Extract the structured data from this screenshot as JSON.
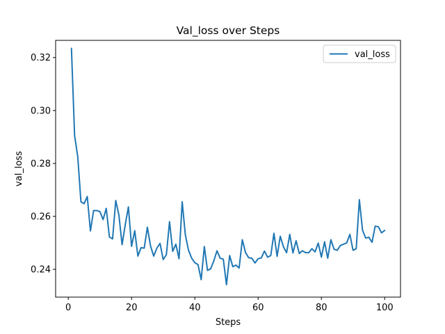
{
  "chart_data": {
    "type": "line",
    "title": "Val_loss over Steps",
    "xlabel": "Steps",
    "ylabel": "val_loss",
    "xlim": [
      -4.0,
      105.0
    ],
    "ylim": [
      0.2295,
      0.3265
    ],
    "xticks": [
      0,
      20,
      40,
      60,
      80,
      100
    ],
    "yticks": [
      0.24,
      0.26,
      0.28,
      0.3,
      0.32
    ],
    "grid": false,
    "legend": "top-right",
    "series": [
      {
        "name": "val_loss",
        "color": "#1f77b4",
        "x": [
          1,
          2,
          3,
          4,
          5,
          6,
          7,
          8,
          9,
          10,
          11,
          12,
          13,
          14,
          15,
          16,
          17,
          18,
          19,
          20,
          21,
          22,
          23,
          24,
          25,
          26,
          27,
          28,
          29,
          30,
          31,
          32,
          33,
          34,
          35,
          36,
          37,
          38,
          39,
          40,
          41,
          42,
          43,
          44,
          45,
          46,
          47,
          48,
          49,
          50,
          51,
          52,
          53,
          54,
          55,
          56,
          57,
          58,
          59,
          60,
          61,
          62,
          63,
          64,
          65,
          66,
          67,
          68,
          69,
          70,
          71,
          72,
          73,
          74,
          75,
          76,
          77,
          78,
          79,
          80,
          81,
          82,
          83,
          84,
          85,
          86,
          87,
          88,
          89,
          90,
          91,
          92,
          93,
          94,
          95,
          96,
          97,
          98,
          99,
          100
        ],
        "values": [
          0.3235,
          0.2905,
          0.2825,
          0.2655,
          0.2648,
          0.2675,
          0.2545,
          0.2622,
          0.2622,
          0.2618,
          0.2588,
          0.263,
          0.2522,
          0.2515,
          0.266,
          0.2605,
          0.2493,
          0.2568,
          0.2636,
          0.2487,
          0.2546,
          0.245,
          0.2482,
          0.248,
          0.2559,
          0.2488,
          0.245,
          0.248,
          0.2498,
          0.2437,
          0.2455,
          0.258,
          0.2468,
          0.2495,
          0.244,
          0.2655,
          0.253,
          0.2472,
          0.2442,
          0.2425,
          0.2418,
          0.2361,
          0.2486,
          0.2396,
          0.2402,
          0.2432,
          0.247,
          0.2442,
          0.2438,
          0.2342,
          0.2452,
          0.241,
          0.2416,
          0.2405,
          0.2512,
          0.2464,
          0.2444,
          0.2442,
          0.2424,
          0.244,
          0.2443,
          0.2469,
          0.2446,
          0.2452,
          0.2536,
          0.2449,
          0.2525,
          0.2485,
          0.2463,
          0.2532,
          0.2462,
          0.2508,
          0.246,
          0.247,
          0.2463,
          0.2463,
          0.2478,
          0.2466,
          0.2499,
          0.2446,
          0.2504,
          0.2442,
          0.2512,
          0.2476,
          0.2472,
          0.249,
          0.2495,
          0.25,
          0.2532,
          0.2472,
          0.2478,
          0.2663,
          0.2548,
          0.2518,
          0.2521,
          0.2502,
          0.2563,
          0.2561,
          0.2538,
          0.2547
        ]
      }
    ]
  }
}
